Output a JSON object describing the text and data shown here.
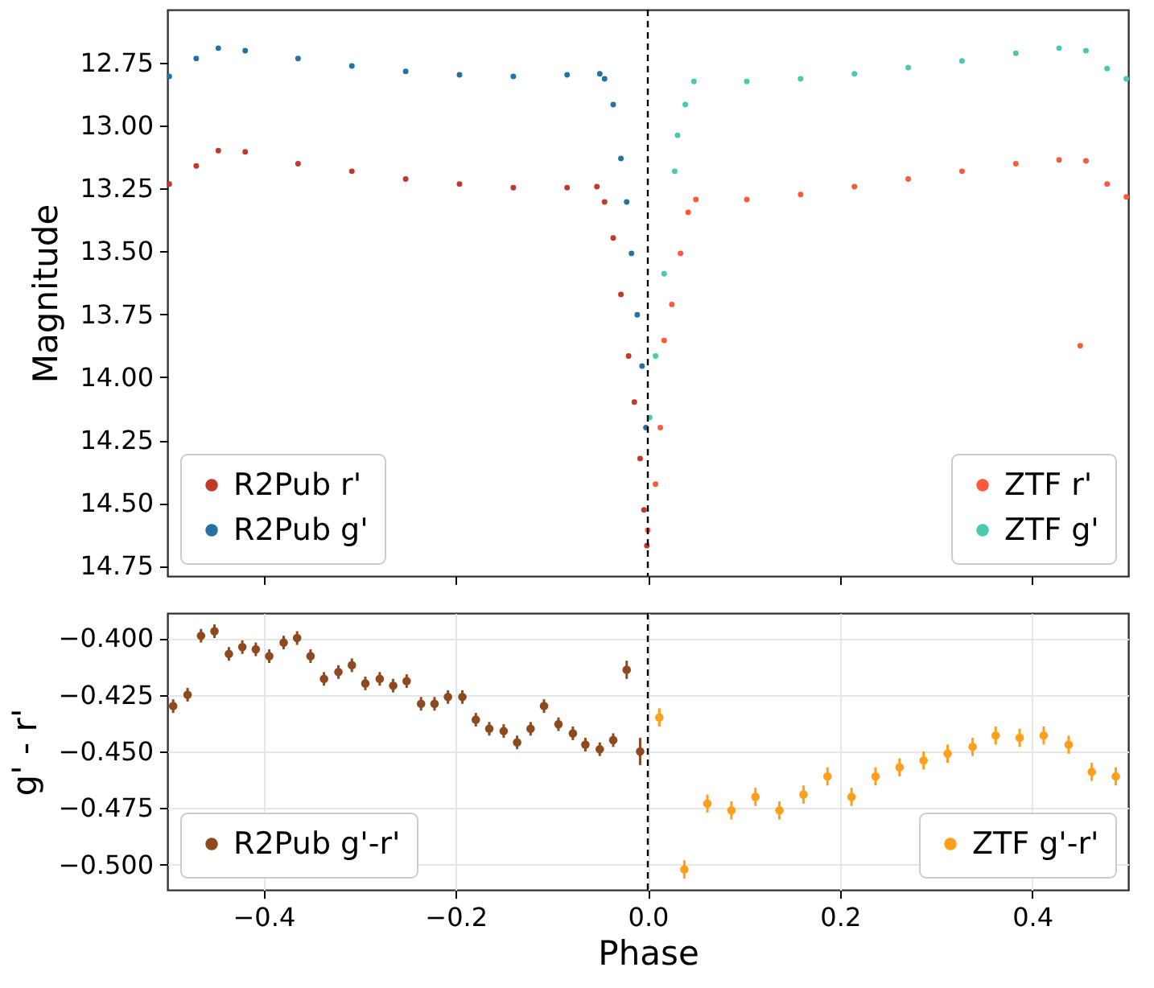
{
  "chart_data": [
    {
      "type": "scatter",
      "ylabel": "Magnitude",
      "xlim": [
        -0.5,
        0.5
      ],
      "xticks": [
        {
          "value": -0.4,
          "label": null
        },
        {
          "value": -0.2,
          "label": null
        },
        {
          "value": 0,
          "label": null
        },
        {
          "value": 0.2,
          "label": null
        },
        {
          "value": 0.4,
          "label": null
        }
      ],
      "ylim": [
        14.79,
        12.54
      ],
      "yticks": [
        {
          "value": 12.75,
          "label": "12.75"
        },
        {
          "value": 13.0,
          "label": "13.00"
        },
        {
          "value": 13.25,
          "label": "13.25"
        },
        {
          "value": 13.5,
          "label": "13.50"
        },
        {
          "value": 13.75,
          "label": "13.75"
        },
        {
          "value": 14.0,
          "label": "14.00"
        },
        {
          "value": 14.25,
          "label": "14.25"
        },
        {
          "value": 14.5,
          "label": "14.50"
        },
        {
          "value": 14.75,
          "label": "14.75"
        }
      ],
      "tick_labels": "y",
      "marker": "circle",
      "legend": "bottom",
      "ref_lines": [
        {
          "axis": "x",
          "value": 0,
          "color": "#000000",
          "line_style": "dashed"
        }
      ],
      "series": [
        {
          "name": "R2Pub r'",
          "color": "#c0392b",
          "x": [
            -0.498,
            -0.47,
            -0.447,
            -0.419,
            -0.364,
            -0.308,
            -0.252,
            -0.196,
            -0.14,
            -0.084,
            -0.053,
            -0.045,
            -0.036,
            -0.028,
            -0.02,
            -0.014,
            -0.008,
            -0.004,
            -0.001
          ],
          "values": [
            13.233,
            13.161,
            13.1,
            13.105,
            13.152,
            13.182,
            13.213,
            13.233,
            13.247,
            13.247,
            13.243,
            13.304,
            13.447,
            13.671,
            13.916,
            14.099,
            14.323,
            14.527,
            14.669
          ]
        },
        {
          "name": "R2Pub g'",
          "color": "#2471a3",
          "x": [
            -0.498,
            -0.47,
            -0.447,
            -0.419,
            -0.364,
            -0.308,
            -0.252,
            -0.196,
            -0.14,
            -0.084,
            -0.05,
            -0.045,
            -0.036,
            -0.028,
            -0.022,
            -0.017,
            -0.011,
            -0.006,
            -0.002
          ],
          "values": [
            12.805,
            12.734,
            12.693,
            12.703,
            12.734,
            12.764,
            12.785,
            12.799,
            12.805,
            12.799,
            12.795,
            12.815,
            12.917,
            13.131,
            13.304,
            13.508,
            13.752,
            13.956,
            14.2
          ]
        },
        {
          "name": "ZTF r'",
          "color": "#fc5a3a",
          "x": [
            0.0,
            0.008,
            0.013,
            0.017,
            0.025,
            0.034,
            0.042,
            0.05,
            0.103,
            0.159,
            0.215,
            0.271,
            0.327,
            0.383,
            0.428,
            0.45,
            0.456,
            0.478,
            0.498
          ],
          "values": [
            14.608,
            14.425,
            14.2,
            13.854,
            13.711,
            13.508,
            13.345,
            13.294,
            13.294,
            13.274,
            13.243,
            13.213,
            13.182,
            13.152,
            13.137,
            13.875,
            13.141,
            13.233,
            13.284
          ]
        },
        {
          "name": "ZTF g'",
          "color": "#48c9b0",
          "x": [
            0.002,
            0.008,
            0.017,
            0.028,
            0.031,
            0.039,
            0.048,
            0.103,
            0.159,
            0.215,
            0.271,
            0.327,
            0.383,
            0.428,
            0.456,
            0.478,
            0.498
          ],
          "values": [
            14.16,
            13.916,
            13.589,
            13.182,
            13.039,
            12.917,
            12.825,
            12.825,
            12.815,
            12.795,
            12.77,
            12.744,
            12.713,
            12.693,
            12.703,
            12.774,
            12.815
          ]
        }
      ]
    },
    {
      "type": "scatter",
      "xlabel": "Phase",
      "ylabel": "g' - r'",
      "xlim": [
        -0.5,
        0.5
      ],
      "xticks": [
        {
          "value": -0.4,
          "label": "−0.4"
        },
        {
          "value": -0.2,
          "label": "−0.2"
        },
        {
          "value": 0,
          "label": "0.0"
        },
        {
          "value": 0.2,
          "label": "0.2"
        },
        {
          "value": 0.4,
          "label": "0.4"
        }
      ],
      "ylim": [
        -0.511,
        -0.389
      ],
      "yticks": [
        {
          "value": -0.4,
          "label": "−0.400"
        },
        {
          "value": -0.425,
          "label": "−0.425"
        },
        {
          "value": -0.45,
          "label": "−0.450"
        },
        {
          "value": -0.475,
          "label": "−0.475"
        },
        {
          "value": -0.5,
          "label": "−0.500"
        }
      ],
      "grid": true,
      "marker": "circle",
      "legend": "bottom",
      "ref_lines": [
        {
          "axis": "x",
          "value": 0,
          "color": "#000000",
          "line_style": "dashed"
        }
      ],
      "series": [
        {
          "name": "R2Pub g'-r'",
          "color": "#8e4a1f",
          "x": [
            -0.494,
            -0.479,
            -0.465,
            -0.451,
            -0.436,
            -0.422,
            -0.408,
            -0.394,
            -0.379,
            -0.365,
            -0.351,
            -0.337,
            -0.322,
            -0.308,
            -0.294,
            -0.279,
            -0.265,
            -0.251,
            -0.236,
            -0.222,
            -0.208,
            -0.193,
            -0.179,
            -0.165,
            -0.15,
            -0.136,
            -0.122,
            -0.108,
            -0.093,
            -0.078,
            -0.065,
            -0.05,
            -0.036,
            -0.022,
            -0.008
          ],
          "values": [
            -0.43,
            -0.425,
            -0.399,
            -0.397,
            -0.407,
            -0.404,
            -0.405,
            -0.408,
            -0.402,
            -0.4,
            -0.408,
            -0.418,
            -0.415,
            -0.412,
            -0.42,
            -0.418,
            -0.421,
            -0.419,
            -0.429,
            -0.429,
            -0.426,
            -0.426,
            -0.436,
            -0.44,
            -0.441,
            -0.446,
            -0.44,
            -0.43,
            -0.438,
            -0.442,
            -0.447,
            -0.449,
            -0.445,
            -0.414,
            -0.45
          ],
          "errors": [
            0.003,
            0.003,
            0.003,
            0.003,
            0.003,
            0.003,
            0.003,
            0.003,
            0.003,
            0.003,
            0.003,
            0.003,
            0.003,
            0.003,
            0.003,
            0.003,
            0.003,
            0.003,
            0.003,
            0.003,
            0.003,
            0.003,
            0.003,
            0.003,
            0.003,
            0.003,
            0.003,
            0.003,
            0.003,
            0.003,
            0.003,
            0.003,
            0.003,
            0.004,
            0.006
          ]
        },
        {
          "name": "ZTF g'-r'",
          "color": "#ff9f1c",
          "x": [
            0.012,
            0.038,
            0.062,
            0.087,
            0.112,
            0.137,
            0.162,
            0.187,
            0.212,
            0.237,
            0.262,
            0.287,
            0.312,
            0.338,
            0.362,
            0.387,
            0.412,
            0.438,
            0.462,
            0.487
          ],
          "values": [
            -0.435,
            -0.502,
            -0.473,
            -0.476,
            -0.47,
            -0.476,
            -0.469,
            -0.461,
            -0.47,
            -0.461,
            -0.457,
            -0.454,
            -0.451,
            -0.448,
            -0.443,
            -0.444,
            -0.443,
            -0.447,
            -0.459,
            -0.461
          ],
          "errors": [
            0.004,
            0.004,
            0.004,
            0.004,
            0.004,
            0.004,
            0.004,
            0.004,
            0.004,
            0.004,
            0.004,
            0.004,
            0.004,
            0.004,
            0.004,
            0.004,
            0.004,
            0.004,
            0.004,
            0.004
          ]
        }
      ]
    }
  ]
}
